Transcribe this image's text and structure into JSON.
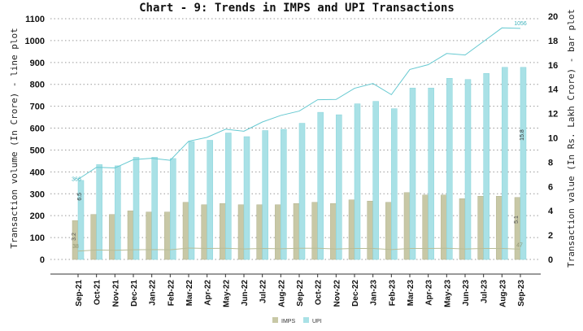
{
  "chart_data": {
    "type": "bar+line",
    "title": "Chart - 9: Trends in IMPS and UPI Transactions",
    "ylabel_left": "Transaction volume (In Crore) - line plot",
    "ylabel_right": "Transaction value (In Rs. Lakh Crore) - bar plot",
    "ylim_left": [
      0,
      1100
    ],
    "ylim_right": [
      0,
      20
    ],
    "yticks_left": [
      0,
      100,
      200,
      300,
      400,
      500,
      600,
      700,
      800,
      900,
      1000,
      1100
    ],
    "yticks_right": [
      0,
      2,
      4,
      6,
      8,
      10,
      12,
      14,
      16,
      18,
      20
    ],
    "grid": true,
    "legend_position": "bottom",
    "categories": [
      "Sep-21",
      "Oct-21",
      "Nov-21",
      "Dec-21",
      "Jan-22",
      "Feb-22",
      "Mar-22",
      "Apr-22",
      "May-22",
      "Jun-22",
      "Jul-22",
      "Aug-22",
      "Sep-22",
      "Oct-22",
      "Nov-22",
      "Dec-22",
      "Jan-23",
      "Feb-23",
      "Mar-23",
      "Apr-23",
      "May-23",
      "Jun-23",
      "Jul-23",
      "Aug-23",
      "Sep-23"
    ],
    "bar_series": [
      {
        "name": "IMPS",
        "color": "#c8c8a6",
        "values": [
          3.2,
          3.7,
          3.7,
          4.0,
          3.9,
          3.9,
          4.7,
          4.5,
          4.6,
          4.5,
          4.5,
          4.5,
          4.6,
          4.7,
          4.6,
          4.9,
          4.8,
          4.7,
          5.5,
          5.3,
          5.3,
          5.0,
          5.2,
          5.2,
          5.1
        ]
      },
      {
        "name": "UPI",
        "color": "#a9e1e6",
        "values": [
          6.5,
          7.8,
          7.7,
          8.4,
          8.4,
          8.3,
          9.7,
          9.8,
          10.4,
          10.1,
          10.6,
          10.7,
          11.2,
          12.1,
          11.9,
          12.8,
          13.0,
          12.4,
          14.1,
          14.1,
          14.9,
          14.8,
          15.3,
          15.8,
          15.8
        ]
      }
    ],
    "line_series": [
      {
        "name": "IMPS",
        "color": "#b8bd98",
        "values": [
          38,
          43,
          42,
          44,
          45,
          44,
          52,
          50,
          51,
          48,
          50,
          49,
          51,
          51,
          48,
          50,
          50,
          45,
          50,
          50,
          51,
          48,
          50,
          50,
          47
        ]
      },
      {
        "name": "UPI",
        "color": "#66c9d1",
        "values": [
          366,
          421,
          418,
          456,
          462,
          453,
          540,
          558,
          595,
          586,
          628,
          658,
          678,
          730,
          731,
          782,
          804,
          753,
          868,
          890,
          941,
          934,
          996,
          1058,
          1056
        ]
      }
    ],
    "data_labels": {
      "imps_bar_first": "3.2",
      "upi_bar_first": "6.5",
      "imps_line_first": "38",
      "upi_line_first": "366",
      "imps_bar_last": "5.1",
      "upi_bar_last": "15.8",
      "imps_line_last": "47",
      "upi_line_last": "1056"
    },
    "legend": [
      "IMPS",
      "UPI"
    ]
  }
}
